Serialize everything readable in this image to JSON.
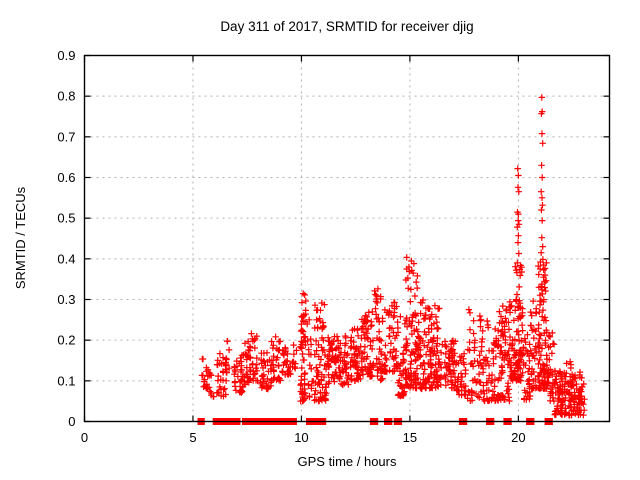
{
  "title": "Day 311 of 2017, SRMTID for receiver djig",
  "chart_data": {
    "type": "scatter",
    "title": "Day 311 of 2017, SRMTID for receiver djig",
    "xlabel": "GPS time / hours",
    "ylabel": "SRMTID / TECUs",
    "xlim": [
      0,
      24.2
    ],
    "ylim": [
      0,
      0.9
    ],
    "xtick_values": [
      0,
      5,
      10,
      15,
      20
    ],
    "xtick_labels": [
      "0",
      "5",
      "10",
      "15",
      "20"
    ],
    "ytick_values": [
      0,
      0.1,
      0.2,
      0.3,
      0.4,
      0.5,
      0.6,
      0.7,
      0.8,
      0.9
    ],
    "ytick_labels": [
      "0",
      "0.1",
      "0.2",
      "0.3",
      "0.4",
      "0.5",
      "0.6",
      "0.7",
      "0.8",
      "0.9"
    ],
    "grid": true,
    "legend": "none",
    "marker": "plus",
    "marker_color": "#ff0000",
    "axis_color": "#000000",
    "grid_color": "#b2b2b2",
    "background": "#ffffff",
    "series_summary": "SRMTID scatter vs GPS time: no data 0-5.3h; low clusters 0.05-0.22 TECU between 5.3-10h; broad band 0.1-0.3 TECU 10-14.5h; dense mass peaking 0.40 near 15.1h; band 0.1-0.3 through 16-19.8h; spike tail to 0.62 near 20.0h; maximum spike 0.80 near 21.1h; low dense blob 0.02-0.13 from 21.7-23.1h; repeated runs of points exactly at 0 shown as solid blocks on the x-axis",
    "clusters_format": "[hour_start, hour_end, srmtid_min, srmtid_max, point_count, low_bias_exponent]",
    "clusters": [
      [
        5.4,
        5.75,
        0.08,
        0.16,
        18,
        1.3
      ],
      [
        5.75,
        6.0,
        0.06,
        0.12,
        10,
        1.2
      ],
      [
        6.1,
        6.55,
        0.06,
        0.17,
        30,
        1.3
      ],
      [
        6.5,
        6.7,
        0.12,
        0.22,
        8,
        1.2
      ],
      [
        6.9,
        7.35,
        0.07,
        0.17,
        30,
        1.3
      ],
      [
        7.2,
        7.6,
        0.09,
        0.2,
        25,
        1.3
      ],
      [
        7.6,
        8.0,
        0.1,
        0.22,
        30,
        1.4
      ],
      [
        8.1,
        8.6,
        0.08,
        0.17,
        35,
        1.3
      ],
      [
        8.6,
        9.05,
        0.1,
        0.21,
        30,
        1.4
      ],
      [
        9.1,
        9.5,
        0.11,
        0.19,
        25,
        1.2
      ],
      [
        9.55,
        9.8,
        0.13,
        0.19,
        10,
        1.0
      ],
      [
        9.95,
        10.2,
        0.05,
        0.315,
        55,
        1.4
      ],
      [
        10.25,
        10.55,
        0.06,
        0.27,
        18,
        1.2
      ],
      [
        10.6,
        11.15,
        0.05,
        0.3,
        70,
        1.7
      ],
      [
        11.2,
        12.3,
        0.09,
        0.21,
        95,
        1.3
      ],
      [
        12.3,
        12.8,
        0.1,
        0.23,
        50,
        1.3
      ],
      [
        12.75,
        12.95,
        0.24,
        0.26,
        3,
        1.0
      ],
      [
        12.8,
        13.35,
        0.11,
        0.27,
        55,
        1.3
      ],
      [
        13.35,
        13.75,
        0.1,
        0.335,
        40,
        1.5
      ],
      [
        13.8,
        14.45,
        0.12,
        0.3,
        55,
        1.4
      ],
      [
        14.45,
        14.8,
        0.06,
        0.26,
        35,
        1.4
      ],
      [
        14.8,
        15.35,
        0.08,
        0.41,
        90,
        1.7
      ],
      [
        15.35,
        15.95,
        0.08,
        0.3,
        75,
        1.5
      ],
      [
        15.95,
        16.4,
        0.08,
        0.285,
        60,
        1.5
      ],
      [
        16.4,
        17.1,
        0.08,
        0.2,
        60,
        1.3
      ],
      [
        17.1,
        17.6,
        0.06,
        0.17,
        35,
        1.2
      ],
      [
        17.65,
        18.45,
        0.05,
        0.285,
        60,
        1.6
      ],
      [
        18.5,
        19.1,
        0.05,
        0.25,
        55,
        1.4
      ],
      [
        19.1,
        19.6,
        0.05,
        0.285,
        65,
        1.4
      ],
      [
        19.6,
        19.85,
        0.1,
        0.3,
        30,
        1.3
      ],
      [
        19.85,
        20.2,
        0.1,
        0.4,
        75,
        1.6
      ],
      [
        20.2,
        20.55,
        0.05,
        0.22,
        30,
        1.3
      ],
      [
        20.5,
        20.85,
        0.08,
        0.3,
        35,
        1.5
      ],
      [
        20.9,
        21.3,
        0.08,
        0.4,
        85,
        1.6
      ],
      [
        21.3,
        21.65,
        0.04,
        0.22,
        35,
        1.4
      ],
      [
        21.65,
        23.05,
        0.015,
        0.125,
        160,
        1.4
      ],
      [
        22.2,
        22.5,
        0.13,
        0.15,
        4,
        1.0
      ]
    ],
    "high_points_format": "[hour, srmtid]",
    "high_points": [
      [
        19.97,
        0.622
      ],
      [
        20.0,
        0.605
      ],
      [
        19.98,
        0.576
      ],
      [
        20.02,
        0.565
      ],
      [
        19.96,
        0.515
      ],
      [
        20.0,
        0.51
      ],
      [
        19.99,
        0.494
      ],
      [
        20.03,
        0.485
      ],
      [
        19.95,
        0.478
      ],
      [
        20.0,
        0.457
      ],
      [
        19.98,
        0.44
      ],
      [
        20.02,
        0.413
      ],
      [
        21.08,
        0.797
      ],
      [
        21.1,
        0.762
      ],
      [
        21.06,
        0.757
      ],
      [
        21.09,
        0.708
      ],
      [
        21.12,
        0.684
      ],
      [
        21.07,
        0.63
      ],
      [
        21.1,
        0.6
      ],
      [
        21.05,
        0.565
      ],
      [
        21.09,
        0.55
      ],
      [
        21.11,
        0.532
      ],
      [
        21.06,
        0.52
      ],
      [
        21.1,
        0.494
      ],
      [
        21.08,
        0.452
      ],
      [
        21.12,
        0.43
      ],
      [
        21.05,
        0.415
      ]
    ],
    "zero_line_marks_format": "[hour_start, hour_end] runs of points at srmtid = 0",
    "zero_line_marks": [
      [
        5.3,
        5.45
      ],
      [
        6.0,
        6.45
      ],
      [
        6.5,
        6.75
      ],
      [
        6.85,
        7.1
      ],
      [
        7.35,
        7.75
      ],
      [
        7.8,
        8.1
      ],
      [
        8.2,
        8.6
      ],
      [
        8.65,
        9.0
      ],
      [
        9.1,
        9.45
      ],
      [
        9.5,
        9.7
      ],
      [
        10.3,
        10.55
      ],
      [
        10.65,
        11.05
      ],
      [
        13.25,
        13.45
      ],
      [
        13.9,
        14.1
      ],
      [
        14.35,
        14.55
      ],
      [
        17.35,
        17.55
      ],
      [
        18.6,
        18.8
      ],
      [
        19.4,
        19.6
      ],
      [
        20.45,
        20.65
      ],
      [
        21.3,
        21.5
      ]
    ]
  }
}
